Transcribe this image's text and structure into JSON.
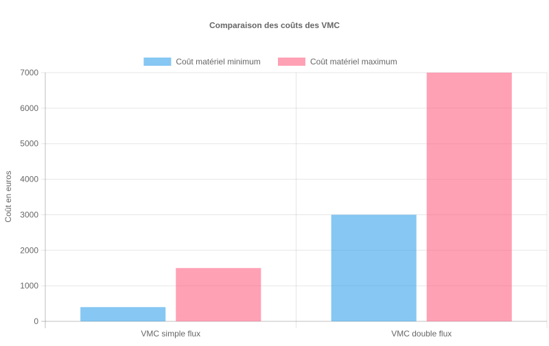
{
  "chart_data": {
    "type": "bar",
    "title": "Comparaison des coûts des VMC",
    "xlabel": "",
    "ylabel": "Coût en euros",
    "categories": [
      "VMC simple flux",
      "VMC double flux"
    ],
    "series": [
      {
        "name": "Coût matériel minimum",
        "values": [
          400,
          3000
        ],
        "color": "#36a2eb"
      },
      {
        "name": "Coût matériel maximum",
        "values": [
          1500,
          7000
        ],
        "color": "#ff6384"
      }
    ],
    "ylim": [
      0,
      7000
    ],
    "yticks": [
      0,
      1000,
      2000,
      3000,
      4000,
      5000,
      6000,
      7000
    ],
    "grid": true,
    "legend": "top"
  }
}
